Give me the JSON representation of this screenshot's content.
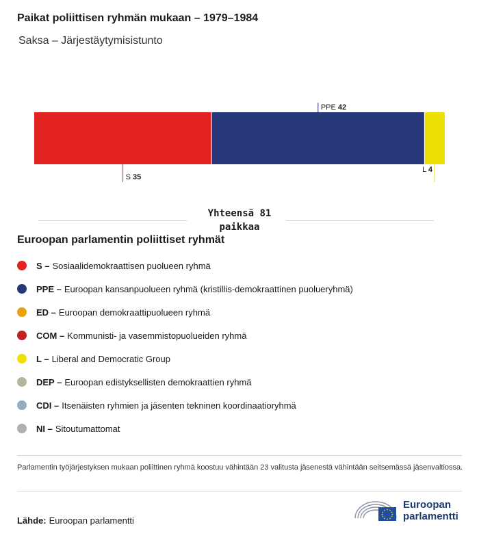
{
  "header": {
    "title": "Paikat poliittisen ryhmän mukaan – 1979–1984",
    "subtitle": "Saksa – Järjestäytymisistunto"
  },
  "chart_data": {
    "type": "bar",
    "orientation": "horizontal-stacked",
    "categories": [
      "S",
      "PPE",
      "L"
    ],
    "values": [
      35,
      42,
      4
    ],
    "colors": [
      "#e32322",
      "#27387a",
      "#ede002"
    ],
    "total_label": "Yhteensä 81 paikkaa",
    "label_positions": [
      "below",
      "above",
      "below"
    ]
  },
  "legend": {
    "title": "Euroopan parlamentin poliittiset ryhmät",
    "items": [
      {
        "abbr": "S –",
        "label": "Sosiaalidemokraattisen puolueen ryhmä",
        "color": "#e32322"
      },
      {
        "abbr": "PPE –",
        "label": "Euroopan kansanpuolueen ryhmä (kristillis-demokraattinen puolueryhmä)",
        "color": "#27387a"
      },
      {
        "abbr": "ED –",
        "label": "Euroopan demokraattipuolueen ryhmä",
        "color": "#eba10c"
      },
      {
        "abbr": "COM –",
        "label": "Kommunisti- ja vasemmistopuolueiden ryhmä",
        "color": "#c4201f"
      },
      {
        "abbr": "L –",
        "label": "Liberal and Democratic Group",
        "color": "#ede002"
      },
      {
        "abbr": "DEP –",
        "label": "Euroopan edistyksellisten demokraattien ryhmä",
        "color": "#b9b3a1"
      },
      {
        "abbr": "CDI –",
        "label": "Itsenäisten ryhmien ja jäsenten tekninen koordinaatioryhmä",
        "color": "#8eafc2"
      },
      {
        "abbr": "NI –",
        "label": "Sitoutumattomat",
        "color": "#b0b0b0"
      }
    ]
  },
  "footer": {
    "note": "Parlamentin työjärjestyksen mukaan poliittinen ryhmä koostuu vähintään 23 valitusta jäsenestä vähintään seitsemässä jäsenvaltiossa.",
    "source_label": "Lähde:",
    "source_value": "Euroopan parlamentti",
    "logo_line1": "Euroopan",
    "logo_line2": "parlamentti"
  }
}
